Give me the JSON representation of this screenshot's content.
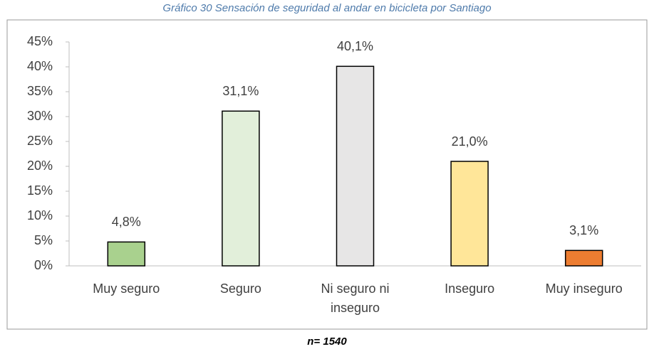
{
  "chart_data": {
    "type": "bar",
    "title": "Gráfico 30 Sensación de seguridad al andar en bicicleta por Santiago",
    "categories": [
      "Muy seguro",
      "Seguro",
      "Ni seguro ni inseguro",
      "Inseguro",
      "Muy inseguro"
    ],
    "values": [
      4.8,
      31.1,
      40.1,
      21.0,
      3.1
    ],
    "value_labels": [
      "4,8%",
      "31,1%",
      "40,1%",
      "21,0%",
      "3,1%"
    ],
    "colors": [
      "#a9d18e",
      "#e2efda",
      "#e7e6e6",
      "#ffe699",
      "#ed7d31"
    ],
    "ylim": [
      0,
      45
    ],
    "yticks": [
      {
        "value": 0,
        "label": "0%"
      },
      {
        "value": 5,
        "label": "5%"
      },
      {
        "value": 10,
        "label": "10%"
      },
      {
        "value": 15,
        "label": "15%"
      },
      {
        "value": 20,
        "label": "20%"
      },
      {
        "value": 25,
        "label": "25%"
      },
      {
        "value": 30,
        "label": "30%"
      },
      {
        "value": 35,
        "label": "35%"
      },
      {
        "value": 40,
        "label": "40%"
      },
      {
        "value": 45,
        "label": "45%"
      }
    ],
    "grid": false,
    "note": "n= 1540"
  }
}
